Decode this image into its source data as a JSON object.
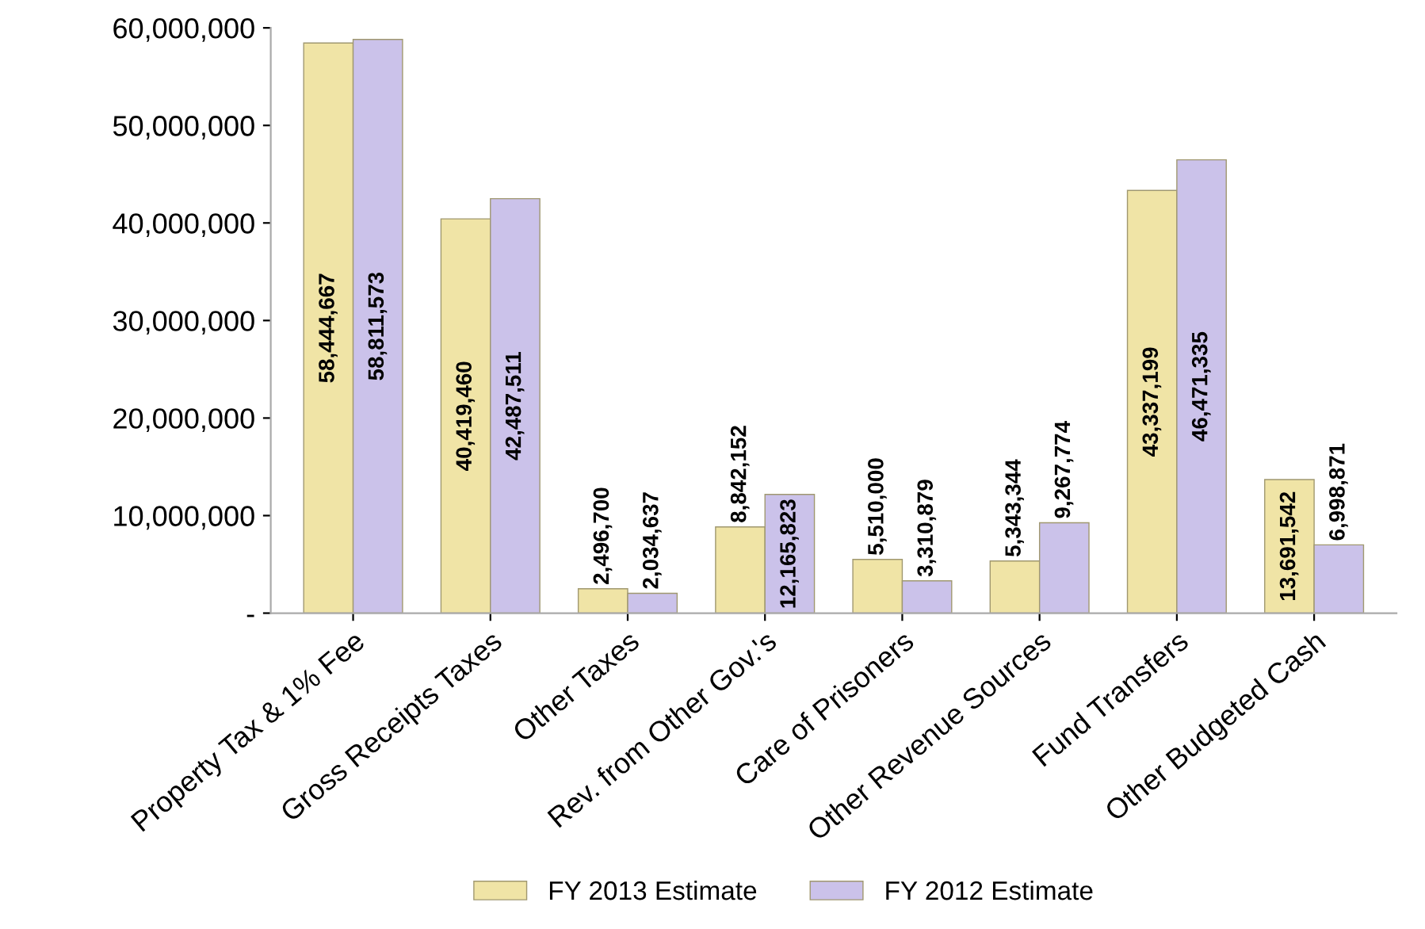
{
  "chart_data": {
    "type": "bar",
    "categories": [
      "Property Tax & 1% Fee",
      "Gross Receipts Taxes",
      "Other Taxes",
      "Rev. from Other Gov.'s",
      "Care of Prisoners",
      "Other Revenue Sources",
      "Fund Transfers",
      "Other Budgeted Cash"
    ],
    "series": [
      {
        "name": "FY 2013 Estimate",
        "color": "#f0e4a6",
        "values": [
          58444667,
          40419460,
          2496700,
          8842152,
          5510000,
          5343344,
          43337199,
          13691542
        ],
        "value_labels": [
          "58,444,667",
          "40,419,460",
          "2,496,700",
          "8,842,152",
          "5,510,000",
          "5,343,344",
          "43,337,199",
          "13,691,542"
        ]
      },
      {
        "name": "FY 2012 Estimate",
        "color": "#cbc2ea",
        "values": [
          58811573,
          42487511,
          2034637,
          12165823,
          3310879,
          9267774,
          46471335,
          6998871
        ],
        "value_labels": [
          "58,811,573",
          "42,487,511",
          "2,034,637",
          "12,165,823",
          "3,310,879",
          "9,267,774",
          "46,471,335",
          "6,998,871"
        ]
      }
    ],
    "ylim": [
      0,
      60000000
    ],
    "yticks": [
      {
        "value": 0,
        "label": "-"
      },
      {
        "value": 10000000,
        "label": "10,000,000"
      },
      {
        "value": 20000000,
        "label": "20,000,000"
      },
      {
        "value": 30000000,
        "label": "30,000,000"
      },
      {
        "value": 40000000,
        "label": "40,000,000"
      },
      {
        "value": 50000000,
        "label": "50,000,000"
      },
      {
        "value": 60000000,
        "label": "60,000,000"
      }
    ],
    "grid": false,
    "legend": "bottom"
  }
}
